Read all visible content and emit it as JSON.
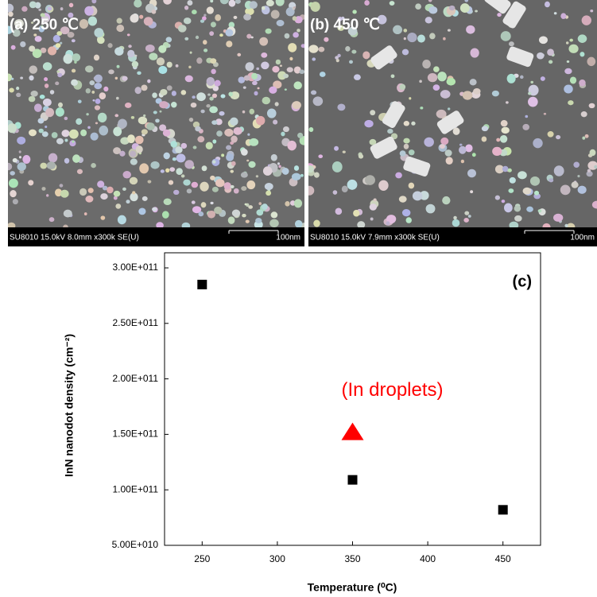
{
  "panels": [
    {
      "label": "(a) 250 ℃",
      "info": "SU8010 15.0kV 8.0mm x300k SE(U)",
      "scale": "100nm"
    },
    {
      "label": "(b) 450 ℃",
      "info": "SU8010 15.0kV 7.9mm x300k SE(U)",
      "scale": "100nm"
    }
  ],
  "chart_data": {
    "type": "scatter",
    "panel_label": "(c)",
    "x_label": "Temperature (⁰C)",
    "y_label": "InN nanodot density (cm⁻²)",
    "xlim": [
      225,
      475
    ],
    "xticks": [
      250,
      300,
      350,
      400,
      450
    ],
    "ylim": [
      50000000000,
      313600000000
    ],
    "yticks": [
      {
        "value": 50000000000,
        "label": "5.00E+010"
      },
      {
        "value": 100000000000,
        "label": "1.00E+011"
      },
      {
        "value": 150000000000,
        "label": "1.50E+011"
      },
      {
        "value": 200000000000,
        "label": "2.00E+011"
      },
      {
        "value": 250000000000,
        "label": "2.50E+011"
      },
      {
        "value": 300000000000,
        "label": "3.00E+011"
      }
    ],
    "series": [
      {
        "color": "#000000",
        "marker": "square",
        "x": [
          250,
          350,
          450
        ],
        "values": [
          285000000000,
          109000000000,
          82000000000
        ]
      },
      {
        "color": "#ff0000",
        "marker": "triangle",
        "x": [
          350
        ],
        "values": [
          152000000000
        ]
      }
    ],
    "annotation": {
      "text": "(In droplets)",
      "color": "#ff0000"
    }
  }
}
